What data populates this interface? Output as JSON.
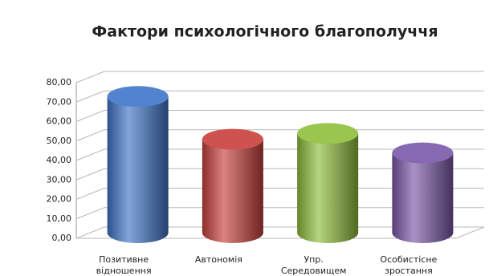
{
  "chart_data": {
    "type": "bar",
    "title": "Фактори психологічного благополуччя",
    "categories": [
      "Позитивне відношення",
      "Автономія",
      "Упр. Середовищем",
      "Особистісне зростання"
    ],
    "series": [
      {
        "name": null,
        "colors": [
          "#3f75c8",
          "#c9403c",
          "#8fbf3a",
          "#7a58a8"
        ],
        "values": [
          70,
          48,
          51,
          41
        ]
      }
    ],
    "ylim": [
      0,
      80
    ],
    "yticks": [
      {
        "value": 0,
        "label": "0,00"
      },
      {
        "value": 10,
        "label": "10,00"
      },
      {
        "value": 20,
        "label": "20,00"
      },
      {
        "value": 30,
        "label": "30,00"
      },
      {
        "value": 40,
        "label": "40,00"
      },
      {
        "value": 50,
        "label": "50,00"
      },
      {
        "value": 60,
        "label": "60,00"
      },
      {
        "value": 70,
        "label": "70,00"
      },
      {
        "value": 80,
        "label": "80,00"
      }
    ],
    "grid": true
  }
}
